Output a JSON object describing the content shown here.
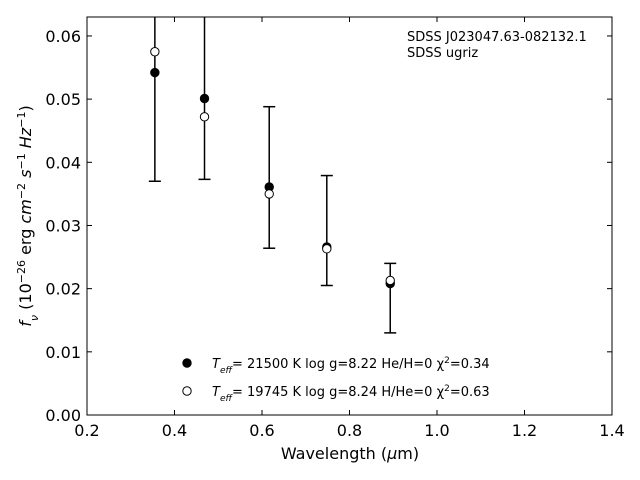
{
  "chart_data": {
    "type": "scatter",
    "xlabel_main": "Wavelength (",
    "xlabel_mu": "μ",
    "xlabel_tail": "m)",
    "ylabel": "f_ν (10^-26 erg cm^-2 s^-1 Hz^-1)",
    "xlim": [
      0.2,
      1.4
    ],
    "ylim": [
      0.0,
      0.063
    ],
    "xticks": [
      0.2,
      0.4,
      0.6,
      0.8,
      1.0,
      1.2,
      1.4
    ],
    "xtick_labels": [
      "0.2",
      "0.4",
      "0.6",
      "0.8",
      "1.0",
      "1.2",
      "1.4"
    ],
    "yticks": [
      0.0,
      0.01,
      0.02,
      0.03,
      0.04,
      0.05,
      0.06
    ],
    "ytick_labels": [
      "0.00",
      "0.01",
      "0.02",
      "0.03",
      "0.04",
      "0.05",
      "0.06"
    ],
    "annotation": {
      "line1": "SDSS J023047.63-082132.1",
      "line2": "SDSS ugriz"
    },
    "observed": {
      "x": [
        0.3551,
        0.4686,
        0.6165,
        0.7481,
        0.8931
      ],
      "y": [
        0.0542,
        0.0501,
        0.0361,
        0.0266,
        0.0208
      ],
      "yerr_low": [
        0.037,
        0.0373,
        0.0264,
        0.0205,
        0.013
      ],
      "yerr_high": [
        0.072,
        0.0635,
        0.0488,
        0.0379,
        0.024
      ]
    },
    "series": [
      {
        "marker": "filled-circle",
        "label_pre": "T",
        "label_sub": "eff",
        "label_post": "= 21500 K  log g=8.22  He/H=0  χ",
        "label_sup": "2",
        "label_end": "=0.34",
        "color": "#000000",
        "x": [
          0.3551,
          0.4686,
          0.6165,
          0.7481,
          0.8931
        ],
        "y": [
          0.0542,
          0.0501,
          0.0361,
          0.0266,
          0.0208
        ]
      },
      {
        "marker": "open-circle",
        "label_pre": "T",
        "label_sub": "eff",
        "label_post": "= 19745 K  log g=8.24  H/He=0  χ",
        "label_sup": "2",
        "label_end": "=0.63",
        "color": "#000000",
        "x": [
          0.3551,
          0.4686,
          0.6165,
          0.7481,
          0.8931
        ],
        "y": [
          0.0575,
          0.0472,
          0.035,
          0.0263,
          0.0213
        ]
      }
    ],
    "legend_position": "lower-center",
    "grid": false
  }
}
